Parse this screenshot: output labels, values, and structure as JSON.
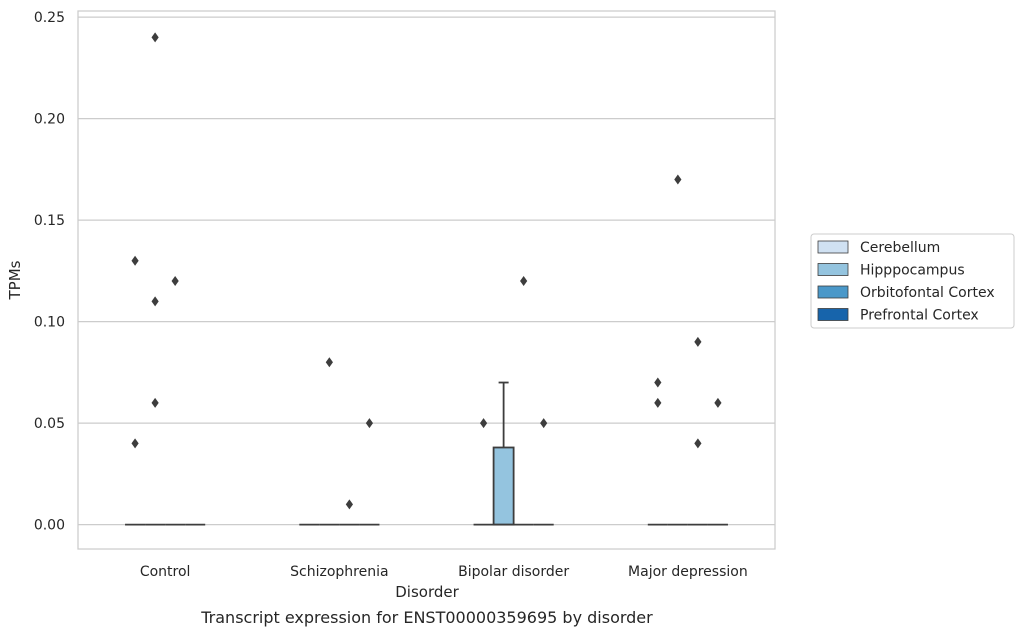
{
  "chart_data": {
    "type": "box",
    "caption": "Transcript expression for ENST00000359695 by disorder",
    "xlabel": "Disorder",
    "ylabel": "TPMs",
    "ylim": [
      -0.012,
      0.253
    ],
    "yticks": [
      0.0,
      0.05,
      0.1,
      0.15,
      0.2,
      0.25
    ],
    "ytick_labels": [
      "0.00",
      "0.05",
      "0.10",
      "0.15",
      "0.20",
      "0.25"
    ],
    "grid": "horizontal",
    "legend_position": "right",
    "categories": [
      "Control",
      "Schizophrenia",
      "Bipolar disorder",
      "Major depression"
    ],
    "series": [
      {
        "name": "Cerebellum",
        "color": "#d0e1f2"
      },
      {
        "name": "Hipppocampus",
        "color": "#94c4df"
      },
      {
        "name": "Orbitofontal Cortex",
        "color": "#4a98c9"
      },
      {
        "name": "Prefrontal Cortex",
        "color": "#1764ab"
      }
    ],
    "boxes": [
      {
        "category": "Control",
        "series": "Cerebellum",
        "q1": 0,
        "median": 0,
        "q3": 0,
        "whisker_low": 0,
        "whisker_high": 0,
        "outliers": [
          0.13,
          0.04
        ]
      },
      {
        "category": "Control",
        "series": "Hipppocampus",
        "q1": 0,
        "median": 0,
        "q3": 0,
        "whisker_low": 0,
        "whisker_high": 0,
        "outliers": [
          0.24,
          0.11,
          0.06
        ]
      },
      {
        "category": "Control",
        "series": "Orbitofontal Cortex",
        "q1": 0,
        "median": 0,
        "q3": 0,
        "whisker_low": 0,
        "whisker_high": 0,
        "outliers": [
          0.12
        ]
      },
      {
        "category": "Control",
        "series": "Prefrontal Cortex",
        "q1": 0,
        "median": 0,
        "q3": 0,
        "whisker_low": 0,
        "whisker_high": 0,
        "outliers": []
      },
      {
        "category": "Schizophrenia",
        "series": "Cerebellum",
        "q1": 0,
        "median": 0,
        "q3": 0,
        "whisker_low": 0,
        "whisker_high": 0,
        "outliers": []
      },
      {
        "category": "Schizophrenia",
        "series": "Hipppocampus",
        "q1": 0,
        "median": 0,
        "q3": 0,
        "whisker_low": 0,
        "whisker_high": 0,
        "outliers": [
          0.08
        ]
      },
      {
        "category": "Schizophrenia",
        "series": "Orbitofontal Cortex",
        "q1": 0,
        "median": 0,
        "q3": 0,
        "whisker_low": 0,
        "whisker_high": 0,
        "outliers": [
          0.01
        ]
      },
      {
        "category": "Schizophrenia",
        "series": "Prefrontal Cortex",
        "q1": 0,
        "median": 0,
        "q3": 0,
        "whisker_low": 0,
        "whisker_high": 0,
        "outliers": [
          0.05
        ]
      },
      {
        "category": "Bipolar disorder",
        "series": "Cerebellum",
        "q1": 0,
        "median": 0,
        "q3": 0,
        "whisker_low": 0,
        "whisker_high": 0,
        "outliers": [
          0.05
        ]
      },
      {
        "category": "Bipolar disorder",
        "series": "Hipppocampus",
        "q1": 0,
        "median": 0,
        "q3": 0.038,
        "whisker_low": 0,
        "whisker_high": 0.07,
        "outliers": []
      },
      {
        "category": "Bipolar disorder",
        "series": "Orbitofontal Cortex",
        "q1": 0,
        "median": 0,
        "q3": 0,
        "whisker_low": 0,
        "whisker_high": 0,
        "outliers": [
          0.12
        ]
      },
      {
        "category": "Bipolar disorder",
        "series": "Prefrontal Cortex",
        "q1": 0,
        "median": 0,
        "q3": 0,
        "whisker_low": 0,
        "whisker_high": 0,
        "outliers": [
          0.05
        ]
      },
      {
        "category": "Major depression",
        "series": "Cerebellum",
        "q1": 0,
        "median": 0,
        "q3": 0,
        "whisker_low": 0,
        "whisker_high": 0,
        "outliers": [
          0.07,
          0.06
        ]
      },
      {
        "category": "Major depression",
        "series": "Hipppocampus",
        "q1": 0,
        "median": 0,
        "q3": 0,
        "whisker_low": 0,
        "whisker_high": 0,
        "outliers": [
          0.17
        ]
      },
      {
        "category": "Major depression",
        "series": "Orbitofontal Cortex",
        "q1": 0,
        "median": 0,
        "q3": 0,
        "whisker_low": 0,
        "whisker_high": 0,
        "outliers": [
          0.09,
          0.04
        ]
      },
      {
        "category": "Major depression",
        "series": "Prefrontal Cortex",
        "q1": 0,
        "median": 0,
        "q3": 0,
        "whisker_low": 0,
        "whisker_high": 0,
        "outliers": [
          0.06
        ]
      }
    ]
  }
}
